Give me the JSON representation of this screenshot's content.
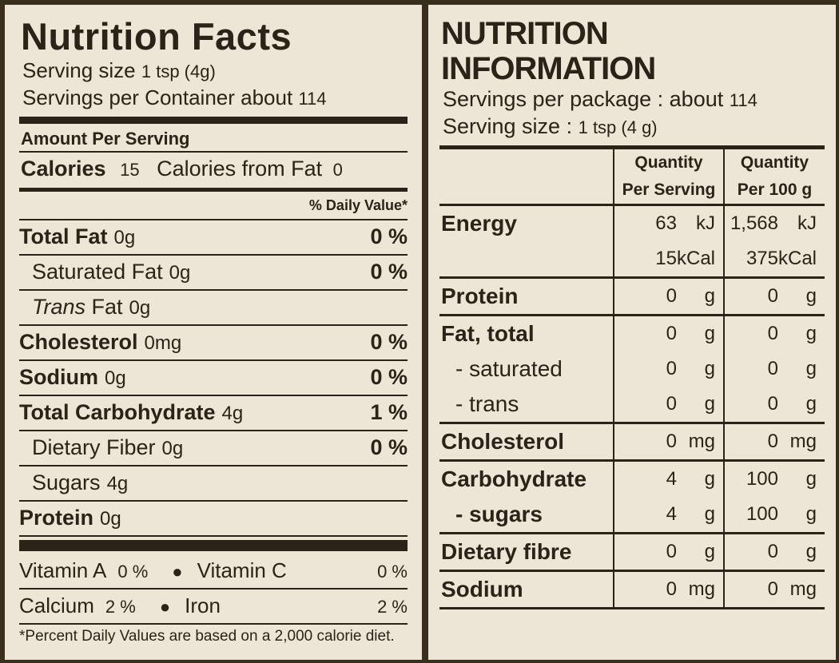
{
  "left": {
    "title": "Nutrition Facts",
    "serving_size_label": "Serving size",
    "serving_size_value": "1 tsp (4g)",
    "servings_label": "Servings per Container about",
    "servings_value": "114",
    "amount_per_serving": "Amount Per Serving",
    "calories_label": "Calories",
    "calories_value": "15",
    "calories_fat_label": "Calories from Fat",
    "calories_fat_value": "0",
    "daily_value_header": "% Daily Value*",
    "rows": [
      {
        "name": "Total Fat",
        "amount": "0g",
        "pct": "0 %",
        "bold": true
      },
      {
        "name": "Saturated Fat",
        "amount": "0g",
        "pct": "0 %",
        "bold": false
      },
      {
        "name": "Trans",
        "name_suffix": " Fat",
        "amount": "0g",
        "pct": "",
        "bold": false
      },
      {
        "name": "Cholesterol",
        "amount": "0mg",
        "pct": "0 %",
        "bold": true
      },
      {
        "name": "Sodium",
        "amount": "0g",
        "pct": "0 %",
        "bold": true
      },
      {
        "name": "Total Carbohydrate",
        "amount": "4g",
        "pct": "1 %",
        "bold": true
      },
      {
        "name": "Dietary Fiber",
        "amount": "0g",
        "pct": "0 %",
        "bold": false
      },
      {
        "name": "Sugars",
        "amount": "4g",
        "pct": "",
        "bold": false
      },
      {
        "name": "Protein",
        "amount": "0g",
        "pct": "",
        "bold": true
      }
    ],
    "vitamins": [
      {
        "a_name": "Vitamin A",
        "a_pct": "0 %",
        "b_name": "Vitamin C",
        "b_pct": "0 %"
      },
      {
        "a_name": "Calcium",
        "a_pct": "2 %",
        "b_name": "Iron",
        "b_pct": "2 %"
      }
    ],
    "bullet": "●",
    "footnote": "*Percent Daily Values are based on a 2,000 calorie diet."
  },
  "right": {
    "title": "NUTRITION INFORMATION",
    "servings_label": "Servings per package : about",
    "servings_value": "114",
    "serving_size_label": "Serving size :",
    "serving_size_value": "1 tsp (4 g)",
    "col1_line1": "Quantity",
    "col1_line2": "Per Serving",
    "col2_line1": "Quantity",
    "col2_line2": "Per 100 g",
    "groups": [
      {
        "rows": [
          {
            "label": "Energy",
            "bold": true,
            "sub": false,
            "v1": "63",
            "u1": "kJ",
            "v2": "1,568",
            "u2": "kJ"
          },
          {
            "label": "",
            "bold": false,
            "sub": false,
            "v1": "15",
            "u1": "kCal",
            "v2": "375",
            "u2": "kCal"
          }
        ]
      },
      {
        "rows": [
          {
            "label": "Protein",
            "bold": true,
            "sub": false,
            "v1": "0",
            "u1": "g",
            "v2": "0",
            "u2": "g"
          }
        ]
      },
      {
        "rows": [
          {
            "label": "Fat, total",
            "bold": true,
            "sub": false,
            "v1": "0",
            "u1": "g",
            "v2": "0",
            "u2": "g"
          },
          {
            "label": "- saturated",
            "bold": false,
            "sub": true,
            "v1": "0",
            "u1": "g",
            "v2": "0",
            "u2": "g"
          },
          {
            "label": "- trans",
            "bold": false,
            "sub": true,
            "v1": "0",
            "u1": "g",
            "v2": "0",
            "u2": "g"
          }
        ]
      },
      {
        "rows": [
          {
            "label": "Cholesterol",
            "bold": true,
            "sub": false,
            "v1": "0",
            "u1": "mg",
            "v2": "0",
            "u2": "mg"
          }
        ]
      },
      {
        "rows": [
          {
            "label": "Carbohydrate",
            "bold": true,
            "sub": false,
            "v1": "4",
            "u1": "g",
            "v2": "100",
            "u2": "g"
          },
          {
            "label": "- sugars",
            "bold": true,
            "sub": true,
            "v1": "4",
            "u1": "g",
            "v2": "100",
            "u2": "g"
          }
        ]
      },
      {
        "rows": [
          {
            "label": "Dietary fibre",
            "bold": true,
            "sub": false,
            "v1": "0",
            "u1": "g",
            "v2": "0",
            "u2": "g"
          }
        ]
      },
      {
        "rows": [
          {
            "label": "Sodium",
            "bold": true,
            "sub": false,
            "v1": "0",
            "u1": "mg",
            "v2": "0",
            "u2": "mg"
          }
        ]
      }
    ]
  }
}
